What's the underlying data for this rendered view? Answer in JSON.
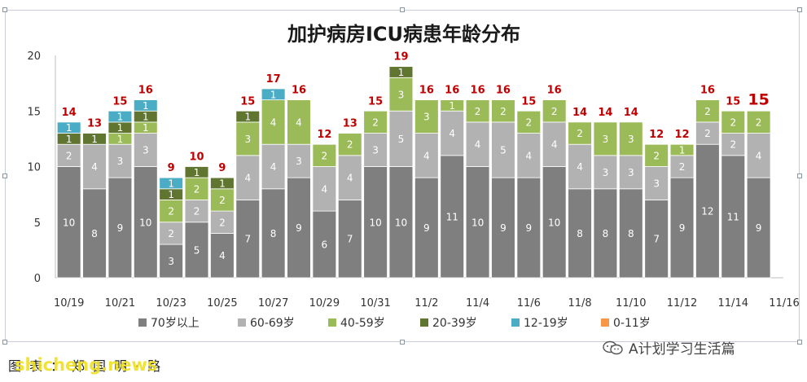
{
  "chart_data": {
    "type": "bar",
    "stacked": true,
    "title": "加护病房ICU病患年龄分布",
    "ylim": [
      0,
      20
    ],
    "yticks": [
      0,
      5,
      10,
      15,
      20
    ],
    "categories": [
      "10/19",
      "10/20",
      "10/21",
      "10/22",
      "10/23",
      "10/24",
      "10/25",
      "10/26",
      "10/27",
      "10/28",
      "10/29",
      "10/30",
      "10/31",
      "11/1",
      "11/2",
      "11/3",
      "11/4",
      "11/5",
      "11/6",
      "11/7",
      "11/8",
      "11/9",
      "11/10",
      "11/11",
      "11/12",
      "11/13",
      "11/14",
      "11/15",
      "11/16"
    ],
    "xtick_labels": [
      "10/19",
      "",
      "10/21",
      "",
      "10/23",
      "",
      "10/25",
      "",
      "10/27",
      "",
      "10/29",
      "",
      "10/31",
      "",
      "11/2",
      "",
      "11/4",
      "",
      "11/6",
      "",
      "11/8",
      "",
      "11/10",
      "",
      "11/12",
      "",
      "11/14",
      "",
      "11/16"
    ],
    "totals": [
      14,
      13,
      15,
      16,
      9,
      10,
      9,
      15,
      17,
      16,
      12,
      13,
      15,
      19,
      16,
      16,
      16,
      16,
      15,
      16,
      14,
      14,
      14,
      12,
      12,
      16,
      15,
      15,
      null
    ],
    "highlight_total_index": 27,
    "series": [
      {
        "name": "70岁以上",
        "color": "#7f7f7f",
        "values": [
          10,
          8,
          9,
          10,
          3,
          5,
          4,
          7,
          8,
          9,
          6,
          7,
          10,
          10,
          9,
          11,
          10,
          9,
          9,
          10,
          8,
          8,
          8,
          7,
          9,
          12,
          11,
          9,
          0
        ]
      },
      {
        "name": "60-69岁",
        "color": "#b2b2b2",
        "values": [
          2,
          4,
          3,
          3,
          2,
          2,
          2,
          4,
          4,
          3,
          4,
          4,
          3,
          5,
          4,
          4,
          4,
          5,
          4,
          4,
          4,
          3,
          3,
          3,
          2,
          2,
          2,
          4,
          0
        ]
      },
      {
        "name": "40-59岁",
        "color": "#9bbb59",
        "values": [
          0,
          0,
          1,
          1,
          2,
          2,
          2,
          3,
          4,
          4,
          2,
          2,
          2,
          3,
          3,
          1,
          2,
          2,
          2,
          2,
          2,
          3,
          3,
          2,
          1,
          2,
          2,
          2,
          0
        ]
      },
      {
        "name": "20-39岁",
        "color": "#5f7530",
        "values": [
          1,
          1,
          1,
          1,
          1,
          1,
          1,
          1,
          0,
          0,
          0,
          0,
          0,
          1,
          0,
          0,
          0,
          0,
          0,
          0,
          0,
          0,
          0,
          0,
          0,
          0,
          0,
          0,
          0
        ]
      },
      {
        "name": "12-19岁",
        "color": "#4bacc6",
        "values": [
          1,
          0,
          1,
          1,
          1,
          0,
          0,
          0,
          1,
          0,
          0,
          0,
          0,
          0,
          0,
          0,
          0,
          0,
          0,
          0,
          0,
          0,
          0,
          0,
          0,
          0,
          0,
          0,
          0
        ]
      },
      {
        "name": "0-11岁",
        "color": "#f79646",
        "values": [
          0,
          0,
          0,
          0,
          0,
          0,
          0,
          0,
          0,
          0,
          0,
          0,
          0,
          0,
          0,
          0,
          0,
          0,
          0,
          0,
          0,
          0,
          0,
          0,
          0,
          0,
          0,
          0,
          0
        ]
      }
    ],
    "legend_position": "bottom",
    "grid": false,
    "total_label_color": "#c00000"
  },
  "footer": {
    "caption": "图表：郑国明·路",
    "watermark": "shicheng.news",
    "wechat_label": "A计划学习生活篇"
  }
}
